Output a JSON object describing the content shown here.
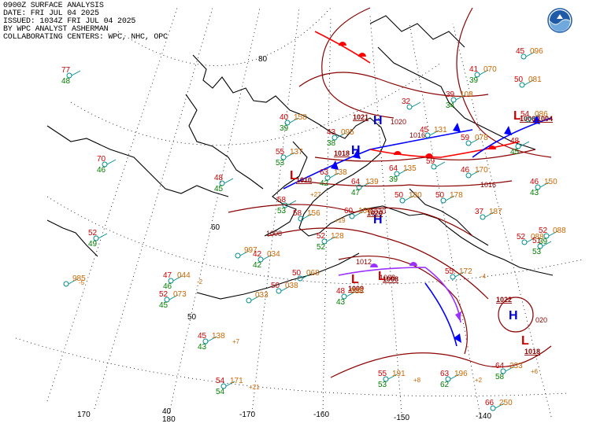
{
  "header": {
    "line1": "0900Z SURFACE ANALYSIS",
    "line2": "DATE: FRI JUL 04 2025",
    "line3": "ISSUED: 1034Z FRI JUL 04 2025",
    "line4": "BY WPC ANALYST ASHERMAN",
    "line5": "COLLABORATING CENTERS: WPC, NHC, OPC"
  },
  "logo": {
    "name": "NOAA",
    "color": "#1e5aa8"
  },
  "colors": {
    "temperature": "#cc0000",
    "dewpoint": "#008000",
    "pressure": "#cc6600",
    "isobar": "#8b0000",
    "cold_front": "#0000ff",
    "warm_front": "#ff0000",
    "occluded_front": "#9b30ff",
    "high": "#0000cc",
    "low": "#cc0000",
    "station": "#008b8b",
    "grid": "#000000",
    "coast": "#000000"
  },
  "grid_labels": {
    "lat": [
      "80",
      "60",
      "50",
      "40"
    ],
    "lon": [
      "170",
      "180",
      "-170",
      "-160",
      "-150",
      "-140"
    ]
  },
  "pressure_centers": [
    {
      "type": "H",
      "value": "1021"
    },
    {
      "type": "H",
      "value": "1018"
    },
    {
      "type": "L",
      "value": "1010"
    },
    {
      "type": "H",
      "value": "1020"
    },
    {
      "type": "L",
      "value": "1009"
    },
    {
      "type": "L",
      "value": "1008"
    },
    {
      "type": "H",
      "value": "1022"
    },
    {
      "type": "L",
      "value": "1018"
    },
    {
      "type": "L",
      "value": "1006"
    },
    {
      "type": "L",
      "value": "1004"
    }
  ],
  "isobar_labels": [
    "1008",
    "1012",
    "1016",
    "1020",
    "1016",
    "1020",
    "1008",
    "020"
  ],
  "stations": [
    {
      "t": "77",
      "d": "48",
      "p": ""
    },
    {
      "t": "40",
      "d": "39",
      "p": "158"
    },
    {
      "t": "55",
      "d": "53",
      "p": "137"
    },
    {
      "t": "43",
      "d": "38",
      "p": "095"
    },
    {
      "t": "63",
      "d": "42",
      "p": "138"
    },
    {
      "t": "64",
      "d": "47",
      "p": "139"
    },
    {
      "t": "64",
      "d": "39",
      "p": "135"
    },
    {
      "t": "45",
      "d": "",
      "p": "131"
    },
    {
      "t": "59",
      "d": "",
      "p": ""
    },
    {
      "t": "59",
      "d": "",
      "p": "078"
    },
    {
      "t": "41",
      "d": "39",
      "p": "070"
    },
    {
      "t": "50",
      "d": "",
      "p": "081"
    },
    {
      "t": "45",
      "d": "",
      "p": "096"
    },
    {
      "t": "39",
      "d": "34",
      "p": "108"
    },
    {
      "t": "32",
      "d": "",
      "p": ""
    },
    {
      "t": "48",
      "d": "45",
      "p": ""
    },
    {
      "t": "60",
      "d": "",
      "p": "166"
    },
    {
      "t": "58",
      "d": "",
      "p": "156"
    },
    {
      "t": "50",
      "d": "",
      "p": "180"
    },
    {
      "t": "50",
      "d": "",
      "p": "178"
    },
    {
      "t": "46",
      "d": "",
      "p": "170"
    },
    {
      "t": "37",
      "d": "",
      "p": "187"
    },
    {
      "t": "52",
      "d": "49",
      "p": ""
    },
    {
      "t": "42",
      "d": "42",
      "p": "034"
    },
    {
      "t": "47",
      "d": "46",
      "p": "044"
    },
    {
      "t": "52",
      "d": "45",
      "p": "073"
    },
    {
      "t": "50",
      "d": "",
      "p": "038"
    },
    {
      "t": "50",
      "d": "",
      "p": "068"
    },
    {
      "t": "48",
      "d": "43",
      "p": "088"
    },
    {
      "t": "55",
      "d": "",
      "p": "172"
    },
    {
      "t": "45",
      "d": "43",
      "p": "138"
    },
    {
      "t": "54",
      "d": "54",
      "p": "171"
    },
    {
      "t": "55",
      "d": "53",
      "p": "191"
    },
    {
      "t": "63",
      "d": "62",
      "p": "196"
    },
    {
      "t": "64",
      "d": "58",
      "p": "233"
    },
    {
      "t": "66",
      "d": "",
      "p": "250"
    },
    {
      "t": "70",
      "d": "46",
      "p": ""
    },
    {
      "t": "48",
      "d": "45",
      "p": ""
    },
    {
      "t": "58",
      "d": "53",
      "p": ""
    },
    {
      "t": "52",
      "d": "52",
      "p": "128"
    },
    {
      "t": "",
      "d": "",
      "p": "997"
    },
    {
      "t": "",
      "d": "",
      "p": "033"
    },
    {
      "t": "",
      "d": "",
      "p": "985"
    },
    {
      "t": "52",
      "d": "",
      "p": "088"
    },
    {
      "t": "51",
      "d": "53",
      "p": ""
    },
    {
      "t": "46",
      "d": "43",
      "p": "150"
    },
    {
      "t": "54",
      "d": "",
      "p": "086"
    },
    {
      "t": "52",
      "d": "39",
      "p": "088"
    }
  ],
  "tendencies": [
    "-5",
    "-2",
    "+7",
    "+21",
    "+8",
    "+2",
    "+6",
    "+19",
    "+27",
    "-4"
  ]
}
